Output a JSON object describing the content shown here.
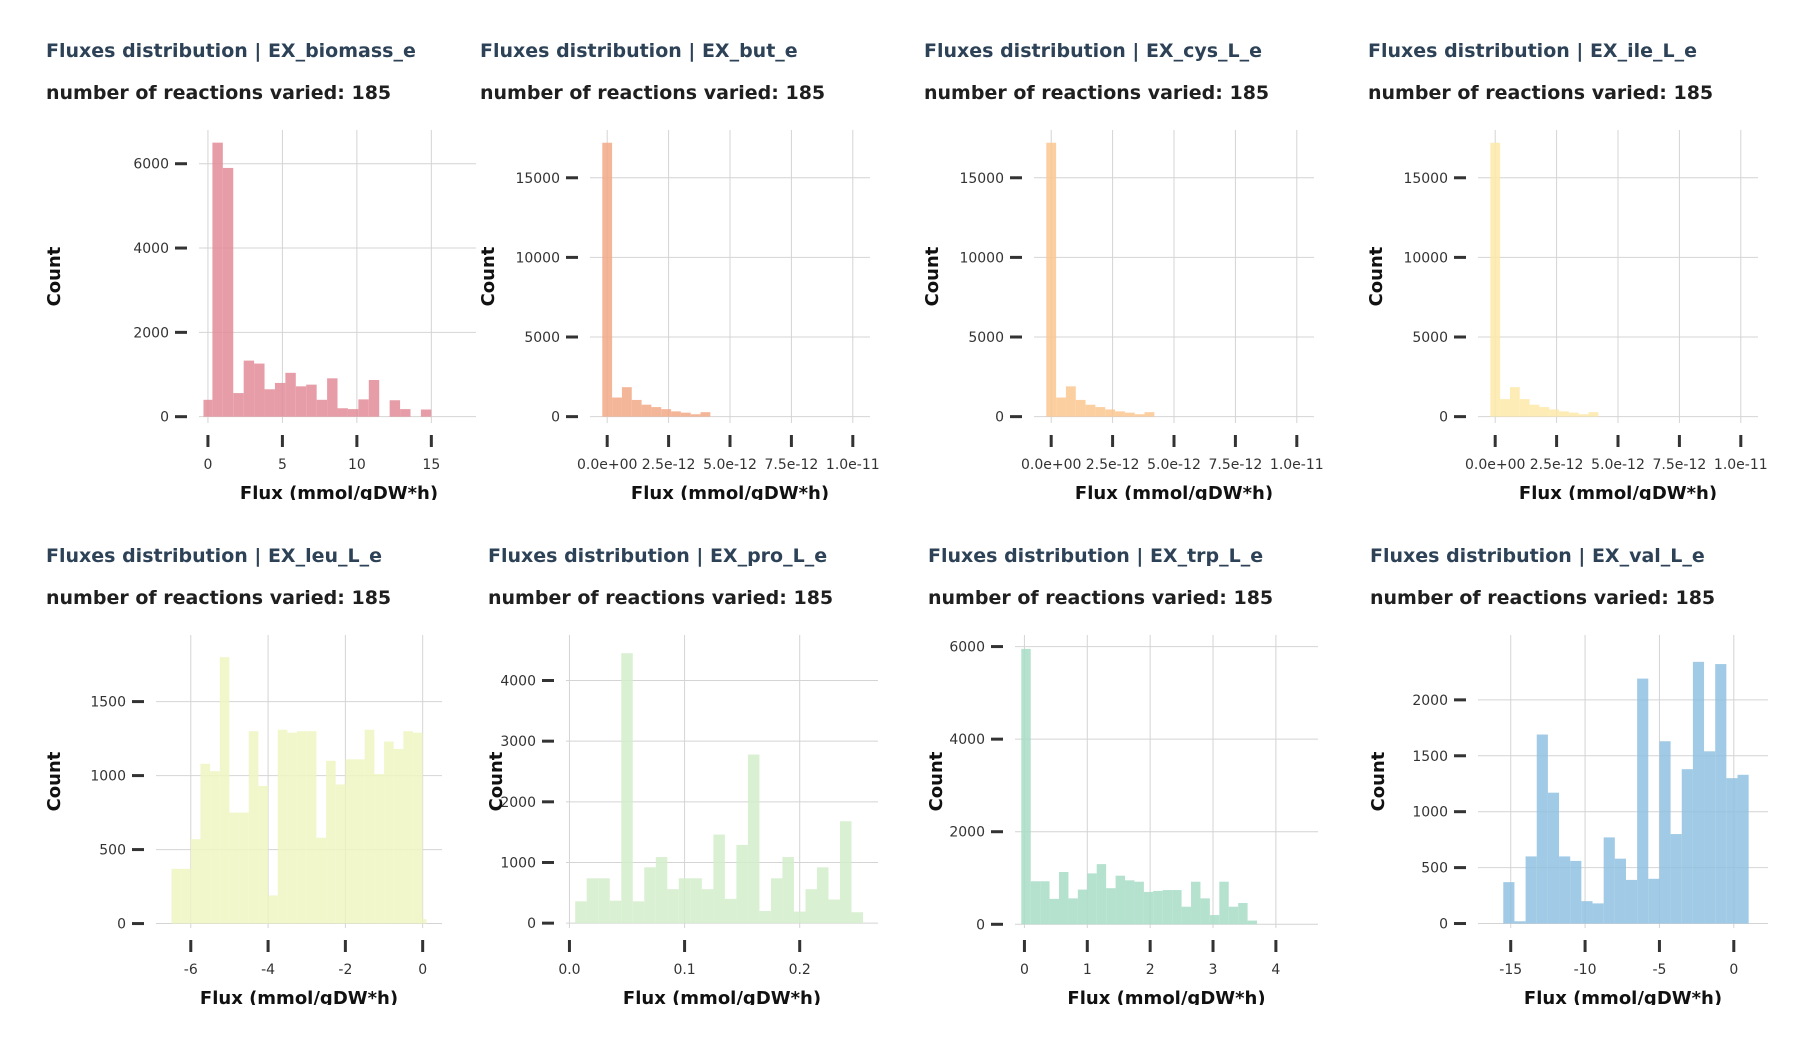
{
  "chart_data": [
    {
      "type": "bar",
      "subtype": "histogram",
      "title": "Fluxes distribution | EX_biomass_e",
      "subtitle": "number of reactions varied: 185",
      "xlabel": "Flux (mmol/gDW*h)",
      "ylabel": "Count",
      "color": "#e38c98",
      "xlim": [
        -0.6,
        18.2
      ],
      "ylim": [
        -150,
        6800
      ],
      "xticks": [
        0,
        5,
        10,
        15
      ],
      "xtick_labels": [
        "0",
        "5",
        "10",
        "15"
      ],
      "yticks": [
        0,
        2000,
        4000,
        6000
      ],
      "ytick_labels": [
        "0",
        "2000",
        "4000",
        "6000"
      ],
      "bins": [
        {
          "x0": -0.3,
          "x1": 0.3,
          "count": 400
        },
        {
          "x0": 0.3,
          "x1": 1.0,
          "count": 6500
        },
        {
          "x0": 1.0,
          "x1": 1.7,
          "count": 5900
        },
        {
          "x0": 1.7,
          "x1": 2.4,
          "count": 560
        },
        {
          "x0": 2.4,
          "x1": 3.1,
          "count": 1330
        },
        {
          "x0": 3.1,
          "x1": 3.8,
          "count": 1260
        },
        {
          "x0": 3.8,
          "x1": 4.5,
          "count": 650
        },
        {
          "x0": 4.5,
          "x1": 5.2,
          "count": 800
        },
        {
          "x0": 5.2,
          "x1": 5.9,
          "count": 1040
        },
        {
          "x0": 5.9,
          "x1": 6.6,
          "count": 720
        },
        {
          "x0": 6.6,
          "x1": 7.3,
          "count": 760
        },
        {
          "x0": 7.3,
          "x1": 8.0,
          "count": 400
        },
        {
          "x0": 8.0,
          "x1": 8.7,
          "count": 910
        },
        {
          "x0": 8.7,
          "x1": 9.4,
          "count": 200
        },
        {
          "x0": 9.4,
          "x1": 10.1,
          "count": 180
        },
        {
          "x0": 10.1,
          "x1": 10.8,
          "count": 410
        },
        {
          "x0": 10.8,
          "x1": 11.5,
          "count": 870
        },
        {
          "x0": 11.5,
          "x1": 12.2,
          "count": 0
        },
        {
          "x0": 12.2,
          "x1": 12.9,
          "count": 390
        },
        {
          "x0": 12.9,
          "x1": 13.6,
          "count": 180
        },
        {
          "x0": 13.6,
          "x1": 14.3,
          "count": 0
        },
        {
          "x0": 14.3,
          "x1": 15.0,
          "count": 170
        }
      ]
    },
    {
      "type": "bar",
      "subtype": "histogram",
      "title": "Fluxes distribution | EX_but_e",
      "subtitle": "number of reactions varied: 185",
      "xlabel": "Flux (mmol/gDW*h)",
      "ylabel": "Count",
      "color": "#f2a987",
      "xlim": [
        -7e-13,
        1.07e-11
      ],
      "ylim": [
        -400,
        18000
      ],
      "xticks": [
        0,
        2.5e-12,
        5e-12,
        7.5e-12,
        1e-11
      ],
      "xtick_labels": [
        "0.0e+00",
        "2.5e-12",
        "5.0e-12",
        "7.5e-12",
        "1.0e-11"
      ],
      "yticks": [
        0,
        5000,
        10000,
        15000
      ],
      "ytick_labels": [
        "0",
        "5000",
        "10000",
        "15000"
      ],
      "bins": [
        {
          "x0": -2e-13,
          "x1": 2e-13,
          "count": 17200
        },
        {
          "x0": 2e-13,
          "x1": 6e-13,
          "count": 1200
        },
        {
          "x0": 6e-13,
          "x1": 1e-12,
          "count": 1850
        },
        {
          "x0": 1e-12,
          "x1": 1.4e-12,
          "count": 1050
        },
        {
          "x0": 1.4e-12,
          "x1": 1.8e-12,
          "count": 750
        },
        {
          "x0": 1.8e-12,
          "x1": 2.2e-12,
          "count": 600
        },
        {
          "x0": 2.2e-12,
          "x1": 2.6e-12,
          "count": 470
        },
        {
          "x0": 2.6e-12,
          "x1": 3e-12,
          "count": 330
        },
        {
          "x0": 3e-12,
          "x1": 3.4e-12,
          "count": 250
        },
        {
          "x0": 3.4e-12,
          "x1": 3.8e-12,
          "count": 150
        },
        {
          "x0": 3.8e-12,
          "x1": 4.2e-12,
          "count": 280
        }
      ]
    },
    {
      "type": "bar",
      "subtype": "histogram",
      "title": "Fluxes distribution | EX_cys_L_e",
      "subtitle": "number of reactions varied: 185",
      "xlabel": "Flux (mmol/gDW*h)",
      "ylabel": "Count",
      "color": "#fcc791",
      "xlim": [
        -7e-13,
        1.07e-11
      ],
      "ylim": [
        -400,
        18000
      ],
      "xticks": [
        0,
        2.5e-12,
        5e-12,
        7.5e-12,
        1e-11
      ],
      "xtick_labels": [
        "0.0e+00",
        "2.5e-12",
        "5.0e-12",
        "7.5e-12",
        "1.0e-11"
      ],
      "yticks": [
        0,
        5000,
        10000,
        15000
      ],
      "ytick_labels": [
        "0",
        "5000",
        "10000",
        "15000"
      ],
      "bins": [
        {
          "x0": -2e-13,
          "x1": 2e-13,
          "count": 17200
        },
        {
          "x0": 2e-13,
          "x1": 6e-13,
          "count": 1200
        },
        {
          "x0": 6e-13,
          "x1": 1e-12,
          "count": 1900
        },
        {
          "x0": 1e-12,
          "x1": 1.4e-12,
          "count": 1050
        },
        {
          "x0": 1.4e-12,
          "x1": 1.8e-12,
          "count": 750
        },
        {
          "x0": 1.8e-12,
          "x1": 2.2e-12,
          "count": 600
        },
        {
          "x0": 2.2e-12,
          "x1": 2.6e-12,
          "count": 450
        },
        {
          "x0": 2.6e-12,
          "x1": 3e-12,
          "count": 330
        },
        {
          "x0": 3e-12,
          "x1": 3.4e-12,
          "count": 250
        },
        {
          "x0": 3.4e-12,
          "x1": 3.8e-12,
          "count": 150
        },
        {
          "x0": 3.8e-12,
          "x1": 4.2e-12,
          "count": 280
        }
      ]
    },
    {
      "type": "bar",
      "subtype": "histogram",
      "title": "Fluxes distribution | EX_ile_L_e",
      "subtitle": "number of reactions varied: 185",
      "xlabel": "Flux (mmol/gDW*h)",
      "ylabel": "Count",
      "color": "#fde9a8",
      "xlim": [
        -7e-13,
        1.07e-11
      ],
      "ylim": [
        -400,
        18000
      ],
      "xticks": [
        0,
        2.5e-12,
        5e-12,
        7.5e-12,
        1e-11
      ],
      "xtick_labels": [
        "0.0e+00",
        "2.5e-12",
        "5.0e-12",
        "7.5e-12",
        "1.0e-11"
      ],
      "yticks": [
        0,
        5000,
        10000,
        15000
      ],
      "ytick_labels": [
        "0",
        "5000",
        "10000",
        "15000"
      ],
      "bins": [
        {
          "x0": -2e-13,
          "x1": 2e-13,
          "count": 17200
        },
        {
          "x0": 2e-13,
          "x1": 6e-13,
          "count": 1100
        },
        {
          "x0": 6e-13,
          "x1": 1e-12,
          "count": 1850
        },
        {
          "x0": 1e-12,
          "x1": 1.4e-12,
          "count": 1100
        },
        {
          "x0": 1.4e-12,
          "x1": 1.8e-12,
          "count": 750
        },
        {
          "x0": 1.8e-12,
          "x1": 2.2e-12,
          "count": 600
        },
        {
          "x0": 2.2e-12,
          "x1": 2.6e-12,
          "count": 450
        },
        {
          "x0": 2.6e-12,
          "x1": 3e-12,
          "count": 330
        },
        {
          "x0": 3e-12,
          "x1": 3.4e-12,
          "count": 250
        },
        {
          "x0": 3.4e-12,
          "x1": 3.8e-12,
          "count": 150
        },
        {
          "x0": 3.8e-12,
          "x1": 4.2e-12,
          "count": 280
        }
      ]
    },
    {
      "type": "bar",
      "subtype": "histogram",
      "title": "Fluxes distribution | EX_leu_L_e",
      "subtitle": "number of reactions varied: 185",
      "xlabel": "Flux (mmol/gDW*h)",
      "ylabel": "Count",
      "color": "#eef6c1",
      "xlim": [
        -6.9,
        0.5
      ],
      "ylim": [
        -30,
        1950
      ],
      "xticks": [
        -6,
        -4,
        -2,
        0
      ],
      "xtick_labels": [
        "-6",
        "-4",
        "-2",
        "0"
      ],
      "yticks": [
        0,
        500,
        1000,
        1500
      ],
      "ytick_labels": [
        "0",
        "500",
        "1000",
        "1500"
      ],
      "bins": [
        {
          "x0": -6.5,
          "x1": -6.25,
          "count": 370
        },
        {
          "x0": -6.25,
          "x1": -6.0,
          "count": 370
        },
        {
          "x0": -6.0,
          "x1": -5.75,
          "count": 570
        },
        {
          "x0": -5.75,
          "x1": -5.5,
          "count": 1080
        },
        {
          "x0": -5.5,
          "x1": -5.25,
          "count": 1030
        },
        {
          "x0": -5.25,
          "x1": -5.0,
          "count": 1800
        },
        {
          "x0": -5.0,
          "x1": -4.75,
          "count": 750
        },
        {
          "x0": -4.75,
          "x1": -4.5,
          "count": 750
        },
        {
          "x0": -4.5,
          "x1": -4.25,
          "count": 1300
        },
        {
          "x0": -4.25,
          "x1": -4.0,
          "count": 930
        },
        {
          "x0": -4.0,
          "x1": -3.75,
          "count": 190
        },
        {
          "x0": -3.75,
          "x1": -3.5,
          "count": 1310
        },
        {
          "x0": -3.5,
          "x1": -3.25,
          "count": 1290
        },
        {
          "x0": -3.25,
          "x1": -3.0,
          "count": 1300
        },
        {
          "x0": -3.0,
          "x1": -2.75,
          "count": 1300
        },
        {
          "x0": -2.75,
          "x1": -2.5,
          "count": 580
        },
        {
          "x0": -2.5,
          "x1": -2.25,
          "count": 1100
        },
        {
          "x0": -2.25,
          "x1": -2.0,
          "count": 940
        },
        {
          "x0": -2.0,
          "x1": -1.75,
          "count": 1110
        },
        {
          "x0": -1.75,
          "x1": -1.5,
          "count": 1110
        },
        {
          "x0": -1.5,
          "x1": -1.25,
          "count": 1310
        },
        {
          "x0": -1.25,
          "x1": -1.0,
          "count": 1010
        },
        {
          "x0": -1.0,
          "x1": -0.75,
          "count": 1230
        },
        {
          "x0": -0.75,
          "x1": -0.5,
          "count": 1180
        },
        {
          "x0": -0.5,
          "x1": -0.25,
          "count": 1300
        },
        {
          "x0": -0.25,
          "x1": 0.0,
          "count": 1290
        },
        {
          "x0": 0.0,
          "x1": 0.1,
          "count": 30
        }
      ]
    },
    {
      "type": "bar",
      "subtype": "histogram",
      "title": "Fluxes distribution | EX_pro_L_e",
      "subtitle": "number of reactions varied: 185",
      "xlabel": "Flux (mmol/gDW*h)",
      "ylabel": "Count",
      "color": "#d3edcb",
      "xlim": [
        -0.003,
        0.268
      ],
      "ylim": [
        -80,
        4750
      ],
      "xticks": [
        0.0,
        0.1,
        0.2
      ],
      "xtick_labels": [
        "0.0",
        "0.1",
        "0.2"
      ],
      "yticks": [
        0,
        1000,
        2000,
        3000,
        4000
      ],
      "ytick_labels": [
        "0",
        "1000",
        "2000",
        "3000",
        "4000"
      ],
      "bins": [
        {
          "x0": 0.005,
          "x1": 0.015,
          "count": 360
        },
        {
          "x0": 0.015,
          "x1": 0.025,
          "count": 740
        },
        {
          "x0": 0.025,
          "x1": 0.035,
          "count": 740
        },
        {
          "x0": 0.035,
          "x1": 0.045,
          "count": 370
        },
        {
          "x0": 0.045,
          "x1": 0.055,
          "count": 4450
        },
        {
          "x0": 0.055,
          "x1": 0.065,
          "count": 360
        },
        {
          "x0": 0.065,
          "x1": 0.075,
          "count": 920
        },
        {
          "x0": 0.075,
          "x1": 0.085,
          "count": 1090
        },
        {
          "x0": 0.085,
          "x1": 0.095,
          "count": 560
        },
        {
          "x0": 0.095,
          "x1": 0.105,
          "count": 740
        },
        {
          "x0": 0.105,
          "x1": 0.115,
          "count": 740
        },
        {
          "x0": 0.115,
          "x1": 0.125,
          "count": 560
        },
        {
          "x0": 0.125,
          "x1": 0.135,
          "count": 1460
        },
        {
          "x0": 0.135,
          "x1": 0.145,
          "count": 400
        },
        {
          "x0": 0.145,
          "x1": 0.155,
          "count": 1290
        },
        {
          "x0": 0.155,
          "x1": 0.165,
          "count": 2780
        },
        {
          "x0": 0.165,
          "x1": 0.175,
          "count": 200
        },
        {
          "x0": 0.175,
          "x1": 0.185,
          "count": 740
        },
        {
          "x0": 0.185,
          "x1": 0.195,
          "count": 1090
        },
        {
          "x0": 0.195,
          "x1": 0.205,
          "count": 190
        },
        {
          "x0": 0.205,
          "x1": 0.215,
          "count": 560
        },
        {
          "x0": 0.215,
          "x1": 0.225,
          "count": 920
        },
        {
          "x0": 0.225,
          "x1": 0.235,
          "count": 390
        },
        {
          "x0": 0.235,
          "x1": 0.245,
          "count": 1680
        },
        {
          "x0": 0.245,
          "x1": 0.255,
          "count": 180
        }
      ]
    },
    {
      "type": "bar",
      "subtype": "histogram",
      "title": "Fluxes distribution | EX_trp_L_e",
      "subtitle": "number of reactions varied: 185",
      "xlabel": "Flux (mmol/gDW*h)",
      "ylabel": "Count",
      "color": "#a8dcc7",
      "xlim": [
        -0.15,
        4.67
      ],
      "ylim": [
        -80,
        6250
      ],
      "xticks": [
        0,
        1,
        2,
        3,
        4
      ],
      "xtick_labels": [
        "0",
        "1",
        "2",
        "3",
        "4"
      ],
      "yticks": [
        0,
        2000,
        4000,
        6000
      ],
      "ytick_labels": [
        "0",
        "2000",
        "4000",
        "6000"
      ],
      "bins": [
        {
          "x0": -0.05,
          "x1": 0.1,
          "count": 5950
        },
        {
          "x0": 0.1,
          "x1": 0.25,
          "count": 930
        },
        {
          "x0": 0.25,
          "x1": 0.4,
          "count": 930
        },
        {
          "x0": 0.4,
          "x1": 0.55,
          "count": 550
        },
        {
          "x0": 0.55,
          "x1": 0.7,
          "count": 1130
        },
        {
          "x0": 0.7,
          "x1": 0.85,
          "count": 560
        },
        {
          "x0": 0.85,
          "x1": 1.0,
          "count": 750
        },
        {
          "x0": 1.0,
          "x1": 1.15,
          "count": 1100
        },
        {
          "x0": 1.15,
          "x1": 1.3,
          "count": 1300
        },
        {
          "x0": 1.3,
          "x1": 1.45,
          "count": 780
        },
        {
          "x0": 1.45,
          "x1": 1.6,
          "count": 1050
        },
        {
          "x0": 1.6,
          "x1": 1.75,
          "count": 950
        },
        {
          "x0": 1.75,
          "x1": 1.9,
          "count": 920
        },
        {
          "x0": 1.9,
          "x1": 2.05,
          "count": 700
        },
        {
          "x0": 2.05,
          "x1": 2.2,
          "count": 720
        },
        {
          "x0": 2.2,
          "x1": 2.35,
          "count": 740
        },
        {
          "x0": 2.35,
          "x1": 2.5,
          "count": 740
        },
        {
          "x0": 2.5,
          "x1": 2.65,
          "count": 380
        },
        {
          "x0": 2.65,
          "x1": 2.8,
          "count": 920
        },
        {
          "x0": 2.8,
          "x1": 2.95,
          "count": 560
        },
        {
          "x0": 2.95,
          "x1": 3.1,
          "count": 200
        },
        {
          "x0": 3.1,
          "x1": 3.25,
          "count": 920
        },
        {
          "x0": 3.25,
          "x1": 3.4,
          "count": 380
        },
        {
          "x0": 3.4,
          "x1": 3.55,
          "count": 460
        },
        {
          "x0": 3.55,
          "x1": 3.7,
          "count": 80
        }
      ]
    },
    {
      "type": "bar",
      "subtype": "histogram",
      "title": "Fluxes distribution | EX_val_L_e",
      "subtitle": "number of reactions varied: 185",
      "xlabel": "Flux (mmol/gDW*h)",
      "ylabel": "Count",
      "color": "#8fc1e0",
      "xlim": [
        -17.2,
        2.3
      ],
      "ylim": [
        -40,
        2580
      ],
      "xticks": [
        -15,
        -10,
        -5,
        0
      ],
      "xtick_labels": [
        "-15",
        "-10",
        "-5",
        "0"
      ],
      "yticks": [
        0,
        500,
        1000,
        1500,
        2000
      ],
      "ytick_labels": [
        "0",
        "500",
        "1000",
        "1500",
        "2000"
      ],
      "bins": [
        {
          "x0": -15.5,
          "x1": -14.75,
          "count": 370
        },
        {
          "x0": -14.75,
          "x1": -14.0,
          "count": 20
        },
        {
          "x0": -14.0,
          "x1": -13.25,
          "count": 600
        },
        {
          "x0": -13.25,
          "x1": -12.5,
          "count": 1690
        },
        {
          "x0": -12.5,
          "x1": -11.75,
          "count": 1170
        },
        {
          "x0": -11.75,
          "x1": -11.0,
          "count": 600
        },
        {
          "x0": -11.0,
          "x1": -10.25,
          "count": 560
        },
        {
          "x0": -10.25,
          "x1": -9.5,
          "count": 200
        },
        {
          "x0": -9.5,
          "x1": -8.75,
          "count": 180
        },
        {
          "x0": -8.75,
          "x1": -8.0,
          "count": 770
        },
        {
          "x0": -8.0,
          "x1": -7.25,
          "count": 580
        },
        {
          "x0": -7.25,
          "x1": -6.5,
          "count": 390
        },
        {
          "x0": -6.5,
          "x1": -5.75,
          "count": 2190
        },
        {
          "x0": -5.75,
          "x1": -5.0,
          "count": 400
        },
        {
          "x0": -5.0,
          "x1": -4.25,
          "count": 1630
        },
        {
          "x0": -4.25,
          "x1": -3.5,
          "count": 800
        },
        {
          "x0": -3.5,
          "x1": -2.75,
          "count": 1380
        },
        {
          "x0": -2.75,
          "x1": -2.0,
          "count": 2340
        },
        {
          "x0": -2.0,
          "x1": -1.25,
          "count": 1540
        },
        {
          "x0": -1.25,
          "x1": -0.5,
          "count": 2320
        },
        {
          "x0": -0.5,
          "x1": 0.25,
          "count": 1300
        },
        {
          "x0": 0.25,
          "x1": 1.0,
          "count": 1330
        }
      ]
    }
  ]
}
